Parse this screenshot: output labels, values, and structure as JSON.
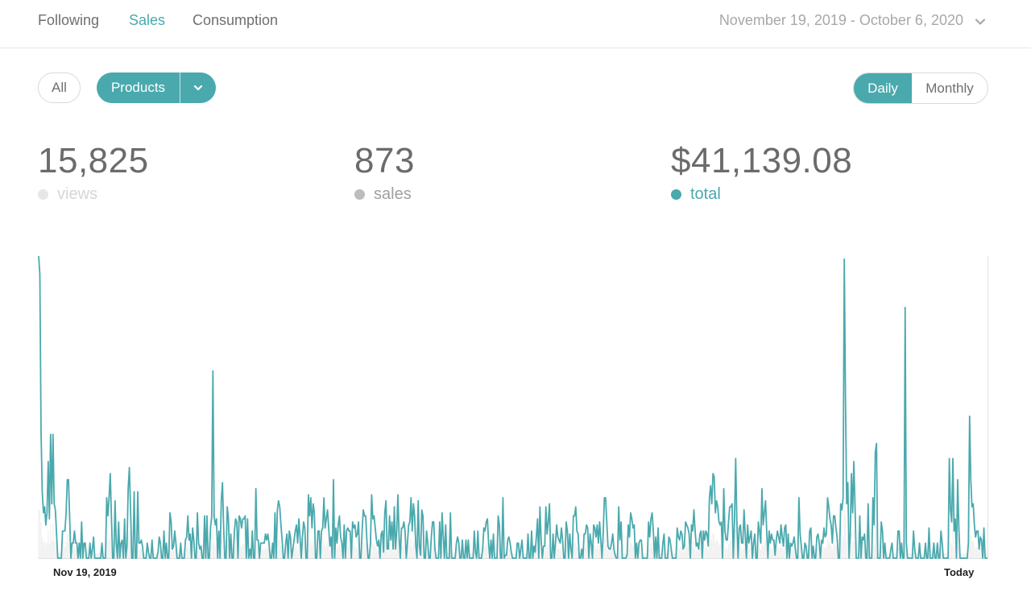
{
  "nav": {
    "tabs": [
      {
        "label": "Following",
        "active": false
      },
      {
        "label": "Sales",
        "active": true
      },
      {
        "label": "Consumption",
        "active": false
      }
    ],
    "date_range": "November 19, 2019 - October 6, 2020"
  },
  "filters": {
    "all_label": "All",
    "products_label": "Products",
    "period": {
      "daily": "Daily",
      "monthly": "Monthly",
      "selected": "Daily"
    }
  },
  "stats": [
    {
      "value": "15,825",
      "label": "views",
      "color": "#e6e6e6"
    },
    {
      "value": "873",
      "label": "sales",
      "color": "#bdbdbd"
    },
    {
      "value": "$41,139.08",
      "label": "total",
      "color": "#4aa9ad"
    }
  ],
  "colors": {
    "accent": "#4aa9ad",
    "axis": "#e0e0e0",
    "views_bar": "#f0f0f0"
  },
  "chart_data": {
    "type": "line",
    "x_start_label": "Nov 19, 2019",
    "x_end_label": "Today",
    "series": [
      {
        "name": "total",
        "values": [
          100,
          94,
          42,
          22,
          15,
          17,
          11,
          15,
          32,
          13,
          41,
          18,
          41,
          18,
          16,
          8,
          0,
          0,
          0,
          0,
          9,
          9,
          9,
          15,
          26,
          26,
          13,
          0,
          5,
          5,
          9,
          5,
          5,
          0,
          5,
          0,
          12,
          0,
          5,
          5,
          0,
          0,
          0,
          5,
          0,
          3,
          7,
          0,
          0,
          0,
          0,
          0,
          0,
          5,
          0,
          0,
          0,
          20,
          14,
          20,
          28,
          13,
          0,
          0,
          19,
          5,
          0,
          12,
          0,
          5,
          6,
          0,
          13,
          0,
          4,
          23,
          30,
          16,
          0,
          0,
          22,
          0,
          0,
          22,
          5,
          5,
          6,
          4,
          0,
          0,
          0,
          5,
          2,
          0,
          0,
          6,
          0,
          0,
          0,
          0,
          2,
          7,
          5,
          0,
          0,
          9,
          0,
          5,
          0,
          0,
          15,
          12,
          3,
          4,
          9,
          5,
          0,
          0,
          0,
          5,
          0,
          0,
          0,
          6,
          7,
          14,
          6,
          8,
          0,
          10,
          6,
          0,
          0,
          15,
          5,
          3,
          4,
          0,
          0,
          14,
          0,
          14,
          0,
          0,
          10,
          14,
          62,
          14,
          11,
          13,
          0,
          9,
          0,
          19,
          25,
          10,
          0,
          0,
          17,
          13,
          0,
          8,
          0,
          0,
          9,
          13,
          12,
          0,
          14,
          13,
          10,
          13,
          13,
          14,
          0,
          13,
          0,
          3,
          0,
          9,
          0,
          0,
          23,
          6,
          6,
          0,
          5,
          5,
          5,
          5,
          8,
          6,
          8,
          5,
          0,
          0,
          5,
          0,
          15,
          0,
          16,
          19,
          17,
          11,
          6,
          0,
          0,
          5,
          8,
          0,
          9,
          7,
          0,
          3,
          6,
          9,
          11,
          5,
          13,
          7,
          0,
          7,
          12,
          10,
          0,
          0,
          21,
          14,
          20,
          10,
          18,
          15,
          0,
          0,
          9,
          9,
          0,
          9,
          10,
          20,
          10,
          13,
          16,
          10,
          4,
          7,
          0,
          26,
          0,
          10,
          5,
          11,
          14,
          7,
          5,
          0,
          11,
          0,
          9,
          10,
          9,
          9,
          0,
          12,
          10,
          11,
          7,
          8,
          12,
          0,
          0,
          9,
          16,
          14,
          14,
          6,
          0,
          0,
          5,
          21,
          13,
          14,
          10,
          6,
          4,
          6,
          0,
          8,
          9,
          2,
          15,
          19,
          3,
          3,
          14,
          6,
          12,
          3,
          17,
          3,
          9,
          21,
          7,
          0,
          10,
          10,
          12,
          9,
          0,
          5,
          11,
          12,
          20,
          9,
          18,
          14,
          4,
          0,
          19,
          4,
          1,
          16,
          14,
          0,
          0,
          9,
          5,
          0,
          0,
          7,
          12,
          12,
          3,
          0,
          0,
          0,
          12,
          0,
          15,
          7,
          0,
          11,
          0,
          0,
          0,
          15,
          0,
          0,
          0,
          0,
          5,
          7,
          5,
          0,
          0,
          6,
          0,
          0,
          6,
          0,
          6,
          0,
          0,
          0,
          0,
          9,
          2,
          0,
          9,
          0,
          0,
          0,
          3,
          10,
          9,
          12,
          13,
          5,
          0,
          6,
          0,
          8,
          0,
          0,
          0,
          14,
          11,
          0,
          0,
          20,
          0,
          1,
          1,
          6,
          7,
          5,
          2,
          0,
          0,
          0,
          0,
          5,
          5,
          0,
          3,
          6,
          0,
          0,
          0,
          0,
          8,
          0,
          0,
          9,
          0,
          4,
          2,
          7,
          13,
          0,
          17,
          6,
          0,
          4,
          4,
          17,
          8,
          12,
          18,
          0,
          0,
          8,
          0,
          5,
          11,
          7,
          6,
          5,
          10,
          6,
          0,
          0,
          12,
          9,
          0,
          8,
          3,
          0,
          14,
          14,
          17,
          9,
          8,
          0,
          0,
          3,
          0,
          8,
          8,
          11,
          10,
          0,
          8,
          5,
          0,
          11,
          10,
          7,
          11,
          5,
          12,
          6,
          0,
          8,
          20,
          20,
          12,
          4,
          3,
          3,
          5,
          8,
          3,
          1,
          0,
          0,
          17,
          6,
          12,
          0,
          0,
          0,
          0,
          1,
          11,
          7,
          15,
          13,
          10,
          11,
          0,
          5,
          0,
          5,
          6,
          6,
          0,
          0,
          0,
          0,
          0,
          12,
          7,
          13,
          15,
          9,
          0,
          7,
          0,
          10,
          0,
          0,
          0,
          5,
          8,
          0,
          0,
          0,
          7,
          6,
          3,
          0,
          0,
          0,
          0,
          10,
          7,
          6,
          9,
          8,
          3,
          4,
          12,
          11,
          10,
          8,
          0,
          11,
          9,
          16,
          9,
          4,
          5,
          3,
          8,
          9,
          0,
          9,
          6,
          9,
          8,
          4,
          20,
          24,
          18,
          28,
          27,
          15,
          19,
          17,
          12,
          11,
          12,
          0,
          23,
          9,
          6,
          6,
          12,
          17,
          17,
          18,
          0,
          12,
          33,
          12,
          0,
          10,
          11,
          5,
          5,
          16,
          8,
          0,
          11,
          5,
          7,
          9,
          0,
          5,
          8,
          0,
          0,
          12,
          9,
          5,
          23,
          11,
          15,
          19,
          9,
          0,
          9,
          5,
          8,
          6,
          6,
          1,
          6,
          9,
          7,
          5,
          11,
          7,
          4,
          10,
          11,
          0,
          8,
          0,
          5,
          4,
          5,
          7,
          3,
          0,
          0,
          20,
          8,
          4,
          0,
          0,
          5,
          4,
          0,
          0,
          9,
          10,
          0,
          4,
          0,
          0,
          7,
          8,
          5,
          0,
          6,
          5,
          10,
          7,
          8,
          20,
          17,
          13,
          11,
          5,
          14,
          14,
          10,
          7,
          0,
          0,
          18,
          16,
          20,
          99,
          53,
          18,
          25,
          0,
          8,
          28,
          15,
          32,
          17,
          0,
          0,
          0,
          14,
          0,
          7,
          6,
          8,
          0,
          0,
          18,
          0,
          0,
          0,
          20,
          11,
          35,
          38,
          0,
          0,
          0,
          12,
          9,
          0,
          5,
          0,
          0,
          0,
          0,
          3,
          5,
          0,
          0,
          0,
          0,
          9,
          9,
          0,
          5,
          0,
          0,
          83,
          5,
          0,
          0,
          0,
          0,
          0,
          9,
          3,
          0,
          0,
          0,
          5,
          0,
          0,
          0,
          0,
          5,
          0,
          0,
          10,
          0,
          0,
          0,
          5,
          0,
          0,
          5,
          0,
          0,
          9,
          5,
          0,
          0,
          0,
          0,
          0,
          33,
          16,
          12,
          33,
          9,
          13,
          0,
          26,
          10,
          0,
          0,
          0,
          0,
          0,
          0,
          0,
          5,
          47,
          26,
          17,
          18,
          11,
          7,
          9,
          9,
          3,
          7,
          6,
          0,
          10,
          0,
          0,
          0
        ]
      }
    ],
    "ylim": [
      0,
      100
    ],
    "grid": false
  }
}
